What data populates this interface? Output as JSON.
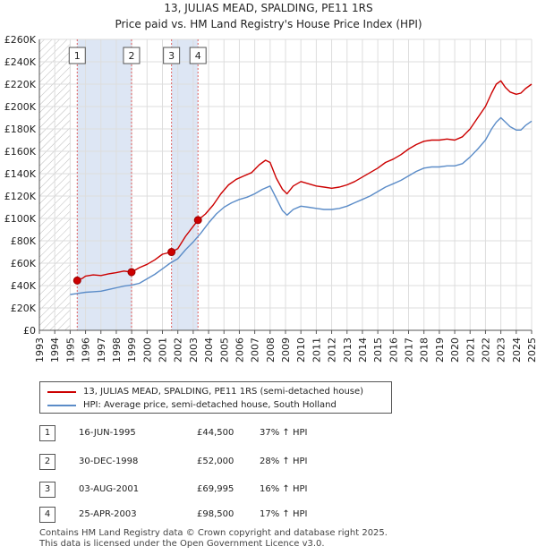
{
  "chart_data": {
    "type": "line",
    "title": "13, JULIAS MEAD, SPALDING, PE11 1RS",
    "subtitle": "Price paid vs. HM Land Registry's House Price Index (HPI)",
    "xlim": [
      1993,
      2025
    ],
    "ylim": [
      0,
      260000
    ],
    "y_ticks": [
      "£0",
      "£20K",
      "£40K",
      "£60K",
      "£80K",
      "£100K",
      "£120K",
      "£140K",
      "£160K",
      "£180K",
      "£200K",
      "£220K",
      "£240K",
      "£260K"
    ],
    "y_tick_values": [
      0,
      20000,
      40000,
      60000,
      80000,
      100000,
      120000,
      140000,
      160000,
      180000,
      200000,
      220000,
      240000,
      260000
    ],
    "x_ticks": [
      "1993",
      "1994",
      "1995",
      "1996",
      "1997",
      "1998",
      "1999",
      "2000",
      "2001",
      "2002",
      "2003",
      "2004",
      "2005",
      "2006",
      "2007",
      "2008",
      "2009",
      "2010",
      "2011",
      "2012",
      "2013",
      "2014",
      "2015",
      "2016",
      "2017",
      "2018",
      "2019",
      "2020",
      "2021",
      "2022",
      "2023",
      "2024",
      "2025"
    ],
    "x_tick_values": [
      1993,
      1994,
      1995,
      1996,
      1997,
      1998,
      1999,
      2000,
      2001,
      2002,
      2003,
      2004,
      2005,
      2006,
      2007,
      2008,
      2009,
      2010,
      2011,
      2012,
      2013,
      2014,
      2015,
      2016,
      2017,
      2018,
      2019,
      2020,
      2021,
      2022,
      2023,
      2024,
      2025
    ],
    "hatch_before": 1995.0,
    "shaded_ranges": [
      [
        1995.46,
        1998.99
      ],
      [
        2001.59,
        2003.31
      ]
    ],
    "series": [
      {
        "name": "13, JULIAS MEAD, SPALDING, PE11 1RS (semi-detached house)",
        "color": "#cc0000",
        "x": [
          1995.46,
          1995.8,
          1996.0,
          1996.5,
          1997.0,
          1997.5,
          1998.0,
          1998.5,
          1998.99,
          1999.5,
          2000.0,
          2000.5,
          2001.0,
          2001.59,
          2002.0,
          2002.5,
          2003.0,
          2003.31,
          2003.8,
          2004.3,
          2004.8,
          2005.3,
          2005.8,
          2006.3,
          2006.8,
          2007.3,
          2007.7,
          2008.0,
          2008.4,
          2008.8,
          2009.1,
          2009.5,
          2010.0,
          2010.5,
          2011.0,
          2011.5,
          2012.0,
          2012.5,
          2013.0,
          2013.5,
          2014.0,
          2014.5,
          2015.0,
          2015.5,
          2016.0,
          2016.5,
          2017.0,
          2017.5,
          2018.0,
          2018.5,
          2019.0,
          2019.5,
          2020.0,
          2020.5,
          2021.0,
          2021.5,
          2022.0,
          2022.4,
          2022.7,
          2023.0,
          2023.3,
          2023.6,
          2024.0,
          2024.3,
          2024.6,
          2025.0
        ],
        "values": [
          44500,
          46500,
          48500,
          49500,
          49000,
          50500,
          51500,
          53000,
          52000,
          56000,
          59000,
          63000,
          68000,
          69995,
          73000,
          84000,
          93000,
          98500,
          104000,
          112000,
          122000,
          130000,
          135000,
          138000,
          141000,
          148000,
          152000,
          150000,
          136000,
          126000,
          122000,
          129000,
          133000,
          131000,
          129000,
          128000,
          127000,
          128000,
          130000,
          133000,
          137000,
          141000,
          145000,
          150000,
          153000,
          157000,
          162000,
          166000,
          169000,
          170000,
          170000,
          171000,
          170000,
          173000,
          180000,
          190000,
          200000,
          212000,
          220000,
          223000,
          217000,
          213000,
          211000,
          212000,
          216000,
          220000
        ]
      },
      {
        "name": "HPI: Average price, semi-detached house, South Holland",
        "color": "#5b8cc8",
        "x": [
          1995.0,
          1995.5,
          1996.0,
          1996.5,
          1997.0,
          1997.5,
          1998.0,
          1998.5,
          1999.0,
          1999.5,
          2000.0,
          2000.5,
          2001.0,
          2001.5,
          2002.0,
          2002.5,
          2003.0,
          2003.5,
          2004.0,
          2004.5,
          2005.0,
          2005.5,
          2006.0,
          2006.5,
          2007.0,
          2007.5,
          2008.0,
          2008.4,
          2008.8,
          2009.1,
          2009.5,
          2010.0,
          2010.5,
          2011.0,
          2011.5,
          2012.0,
          2012.5,
          2013.0,
          2013.5,
          2014.0,
          2014.5,
          2015.0,
          2015.5,
          2016.0,
          2016.5,
          2017.0,
          2017.5,
          2018.0,
          2018.5,
          2019.0,
          2019.5,
          2020.0,
          2020.5,
          2021.0,
          2021.5,
          2022.0,
          2022.4,
          2022.7,
          2023.0,
          2023.3,
          2023.6,
          2024.0,
          2024.3,
          2024.6,
          2025.0
        ],
        "values": [
          32000,
          33000,
          34000,
          34500,
          35000,
          36500,
          38000,
          39500,
          40500,
          42000,
          46000,
          50000,
          55000,
          60000,
          64000,
          72000,
          79000,
          87000,
          96000,
          104000,
          110000,
          114000,
          117000,
          119000,
          122000,
          126000,
          129000,
          118000,
          107000,
          103000,
          108000,
          111000,
          110000,
          109000,
          108000,
          108000,
          109000,
          111000,
          114000,
          117000,
          120000,
          124000,
          128000,
          131000,
          134000,
          138000,
          142000,
          145000,
          146000,
          146000,
          147000,
          147000,
          149000,
          155000,
          162000,
          170000,
          180000,
          186000,
          190000,
          186000,
          182000,
          179000,
          179000,
          183000,
          187000
        ]
      }
    ],
    "markers": [
      {
        "label": "1",
        "x": 1995.46,
        "y": 44500
      },
      {
        "label": "2",
        "x": 1998.99,
        "y": 52000
      },
      {
        "label": "3",
        "x": 2001.59,
        "y": 69995
      },
      {
        "label": "4",
        "x": 2003.31,
        "y": 98500
      }
    ]
  },
  "legend": {
    "property_label": "13, JULIAS MEAD, SPALDING, PE11 1RS (semi-detached house)",
    "hpi_label": "HPI: Average price, semi-detached house, South Holland",
    "property_color": "#cc0000",
    "hpi_color": "#5b8cc8"
  },
  "transactions": [
    {
      "num": "1",
      "date": "16-JUN-1995",
      "price": "£44,500",
      "hpi": "37% ↑ HPI"
    },
    {
      "num": "2",
      "date": "30-DEC-1998",
      "price": "£52,000",
      "hpi": "28% ↑ HPI"
    },
    {
      "num": "3",
      "date": "03-AUG-2001",
      "price": "£69,995",
      "hpi": "16% ↑ HPI"
    },
    {
      "num": "4",
      "date": "25-APR-2003",
      "price": "£98,500",
      "hpi": "17% ↑ HPI"
    }
  ],
  "footer": {
    "line1": "Contains HM Land Registry data © Crown copyright and database right 2025.",
    "line2": "This data is licensed under the Open Government Licence v3.0."
  }
}
